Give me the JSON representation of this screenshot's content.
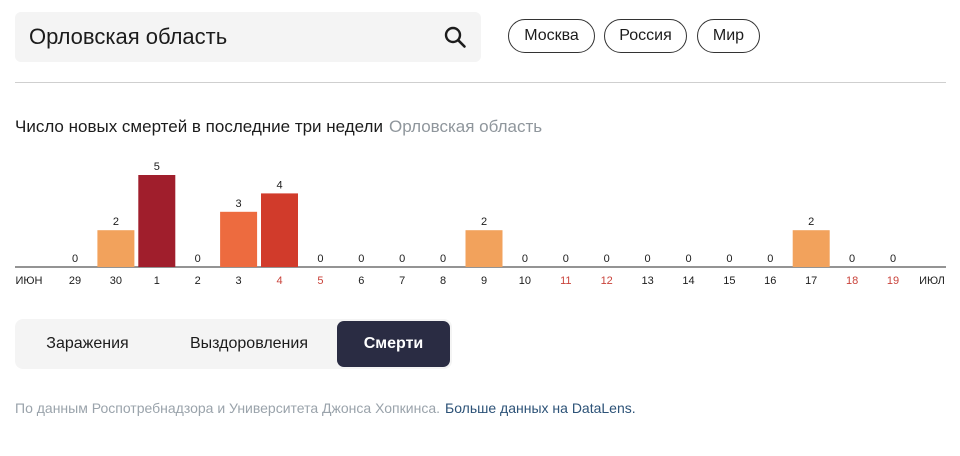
{
  "search": {
    "value": "Орловская область"
  },
  "chips": [
    "Москва",
    "Россия",
    "Мир"
  ],
  "chart": {
    "title": "Число новых смертей в последние три недели",
    "region": "Орловская область"
  },
  "chart_data": {
    "type": "bar",
    "title": "Число новых смертей в последние три недели",
    "start_label": "июн",
    "end_label": "июл",
    "categories": [
      "29",
      "30",
      "1",
      "2",
      "3",
      "4",
      "5",
      "6",
      "7",
      "8",
      "9",
      "10",
      "11",
      "12",
      "13",
      "14",
      "15",
      "16",
      "17",
      "18",
      "19"
    ],
    "values": [
      0,
      2,
      5,
      0,
      3,
      4,
      0,
      0,
      0,
      0,
      2,
      0,
      0,
      0,
      0,
      0,
      0,
      0,
      2,
      0,
      0
    ],
    "weekend_labels": [
      "4",
      "5",
      "11",
      "12",
      "18",
      "19"
    ],
    "ylim": [
      0,
      5
    ],
    "color_scale": {
      "2": "#f2a25c",
      "3": "#ed6b3f",
      "4": "#d13b2b",
      "5": "#a01e2c"
    },
    "label_color": "#1c1c1c",
    "weekend_color": "#c9423a"
  },
  "tabs": [
    {
      "label": "Заражения",
      "active": false
    },
    {
      "label": "Выздоровления",
      "active": false
    },
    {
      "label": "Смерти",
      "active": true
    }
  ],
  "footer": {
    "source": "По данным Роспотребнадзора и Университета Джонса Хопкинса.",
    "link": "Больше данных на DataLens."
  },
  "colors": {
    "accent_dark": "#2a2c43",
    "link": "#2c5277",
    "muted": "#9aa3ab"
  }
}
